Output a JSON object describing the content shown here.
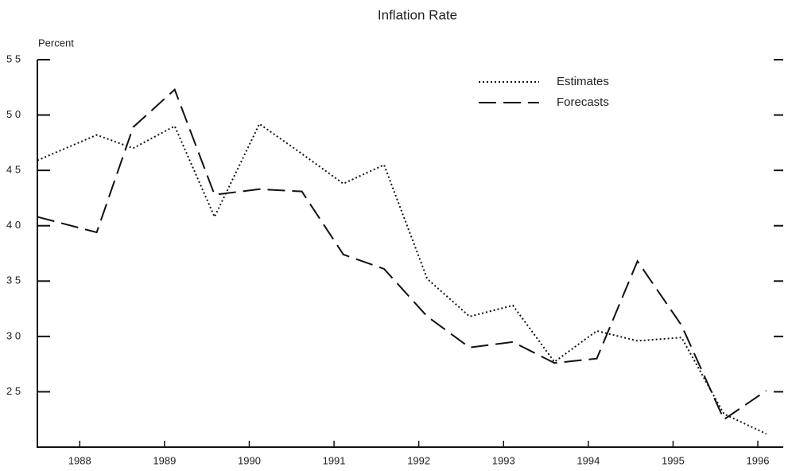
{
  "chart_data": {
    "type": "line",
    "title": "Inflation Rate",
    "y_label": "Percent",
    "x": [
      1988.0,
      1988.7,
      1989.13,
      1989.62,
      1990.09,
      1990.62,
      1991.12,
      1991.61,
      1992.09,
      1992.6,
      1993.1,
      1993.61,
      1994.1,
      1994.6,
      1995.08,
      1995.6,
      1996.1,
      1996.6
    ],
    "series": [
      {
        "name": "Estimates",
        "color": "#111111",
        "dash": "2 3",
        "values": [
          4.59,
          4.82,
          4.7,
          4.9,
          4.08,
          4.92,
          4.65,
          4.38,
          4.55,
          3.52,
          3.18,
          3.28,
          2.77,
          3.05,
          2.96,
          2.99,
          2.3,
          2.12
        ]
      },
      {
        "name": "Forecasts",
        "color": "#111111",
        "dash": "22 9",
        "values": [
          4.08,
          3.94,
          4.89,
          5.23,
          4.28,
          4.33,
          4.31,
          3.74,
          3.61,
          3.18,
          2.9,
          2.95,
          2.76,
          2.8,
          3.68,
          3.1,
          2.25,
          2.51
        ]
      }
    ],
    "xlim": [
      1988.0,
      1996.8
    ],
    "xticks": [
      {
        "value": 1988.5,
        "label": "1988"
      },
      {
        "value": 1989.5,
        "label": "1989"
      },
      {
        "value": 1990.5,
        "label": "1990"
      },
      {
        "value": 1991.5,
        "label": "1991"
      },
      {
        "value": 1992.5,
        "label": "1992"
      },
      {
        "value": 1993.5,
        "label": "1993"
      },
      {
        "value": 1994.5,
        "label": "1994"
      },
      {
        "value": 1995.5,
        "label": "1995"
      },
      {
        "value": 1996.5,
        "label": "1996"
      }
    ],
    "ylim": [
      2.0,
      5.5
    ],
    "yticks": [
      {
        "value": 2.5,
        "label": "2 5"
      },
      {
        "value": 3.0,
        "label": "3 0"
      },
      {
        "value": 3.5,
        "label": "3 5"
      },
      {
        "value": 4.0,
        "label": "4 0"
      },
      {
        "value": 4.5,
        "label": "4 5"
      },
      {
        "value": 5.0,
        "label": "5 0"
      },
      {
        "value": 5.5,
        "label": "5 5"
      }
    ],
    "legend": "upper right"
  }
}
